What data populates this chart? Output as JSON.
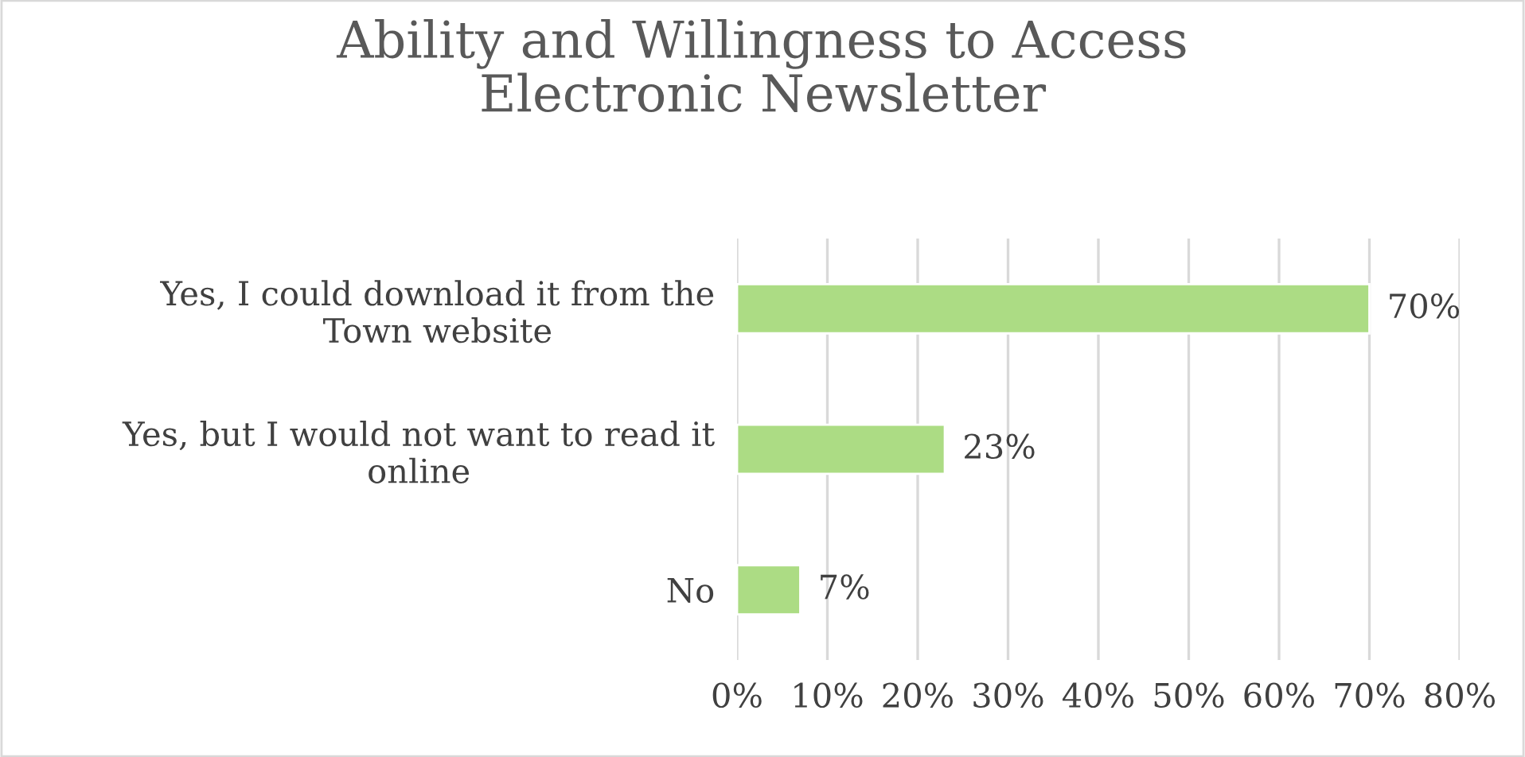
{
  "chart_data": {
    "type": "bar",
    "orientation": "horizontal",
    "title": "Ability and Willingness to Access\nElectronic Newsletter",
    "categories": [
      "Yes, I could download it from the\nTown website",
      "Yes, but I would not want to read it\nonline",
      "No"
    ],
    "values": [
      70,
      23,
      7
    ],
    "value_labels": [
      "70%",
      "23%",
      "7%"
    ],
    "color": "#acdc84",
    "xlim": [
      0,
      80
    ],
    "xticks": [
      {
        "value": 0,
        "label": "0%"
      },
      {
        "value": 10,
        "label": "10%"
      },
      {
        "value": 20,
        "label": "20%"
      },
      {
        "value": 30,
        "label": "30%"
      },
      {
        "value": 40,
        "label": "40%"
      },
      {
        "value": 50,
        "label": "50%"
      },
      {
        "value": 60,
        "label": "60%"
      },
      {
        "value": 70,
        "label": "70%"
      },
      {
        "value": 80,
        "label": "80%"
      }
    ],
    "grid": "x",
    "legend": false
  }
}
